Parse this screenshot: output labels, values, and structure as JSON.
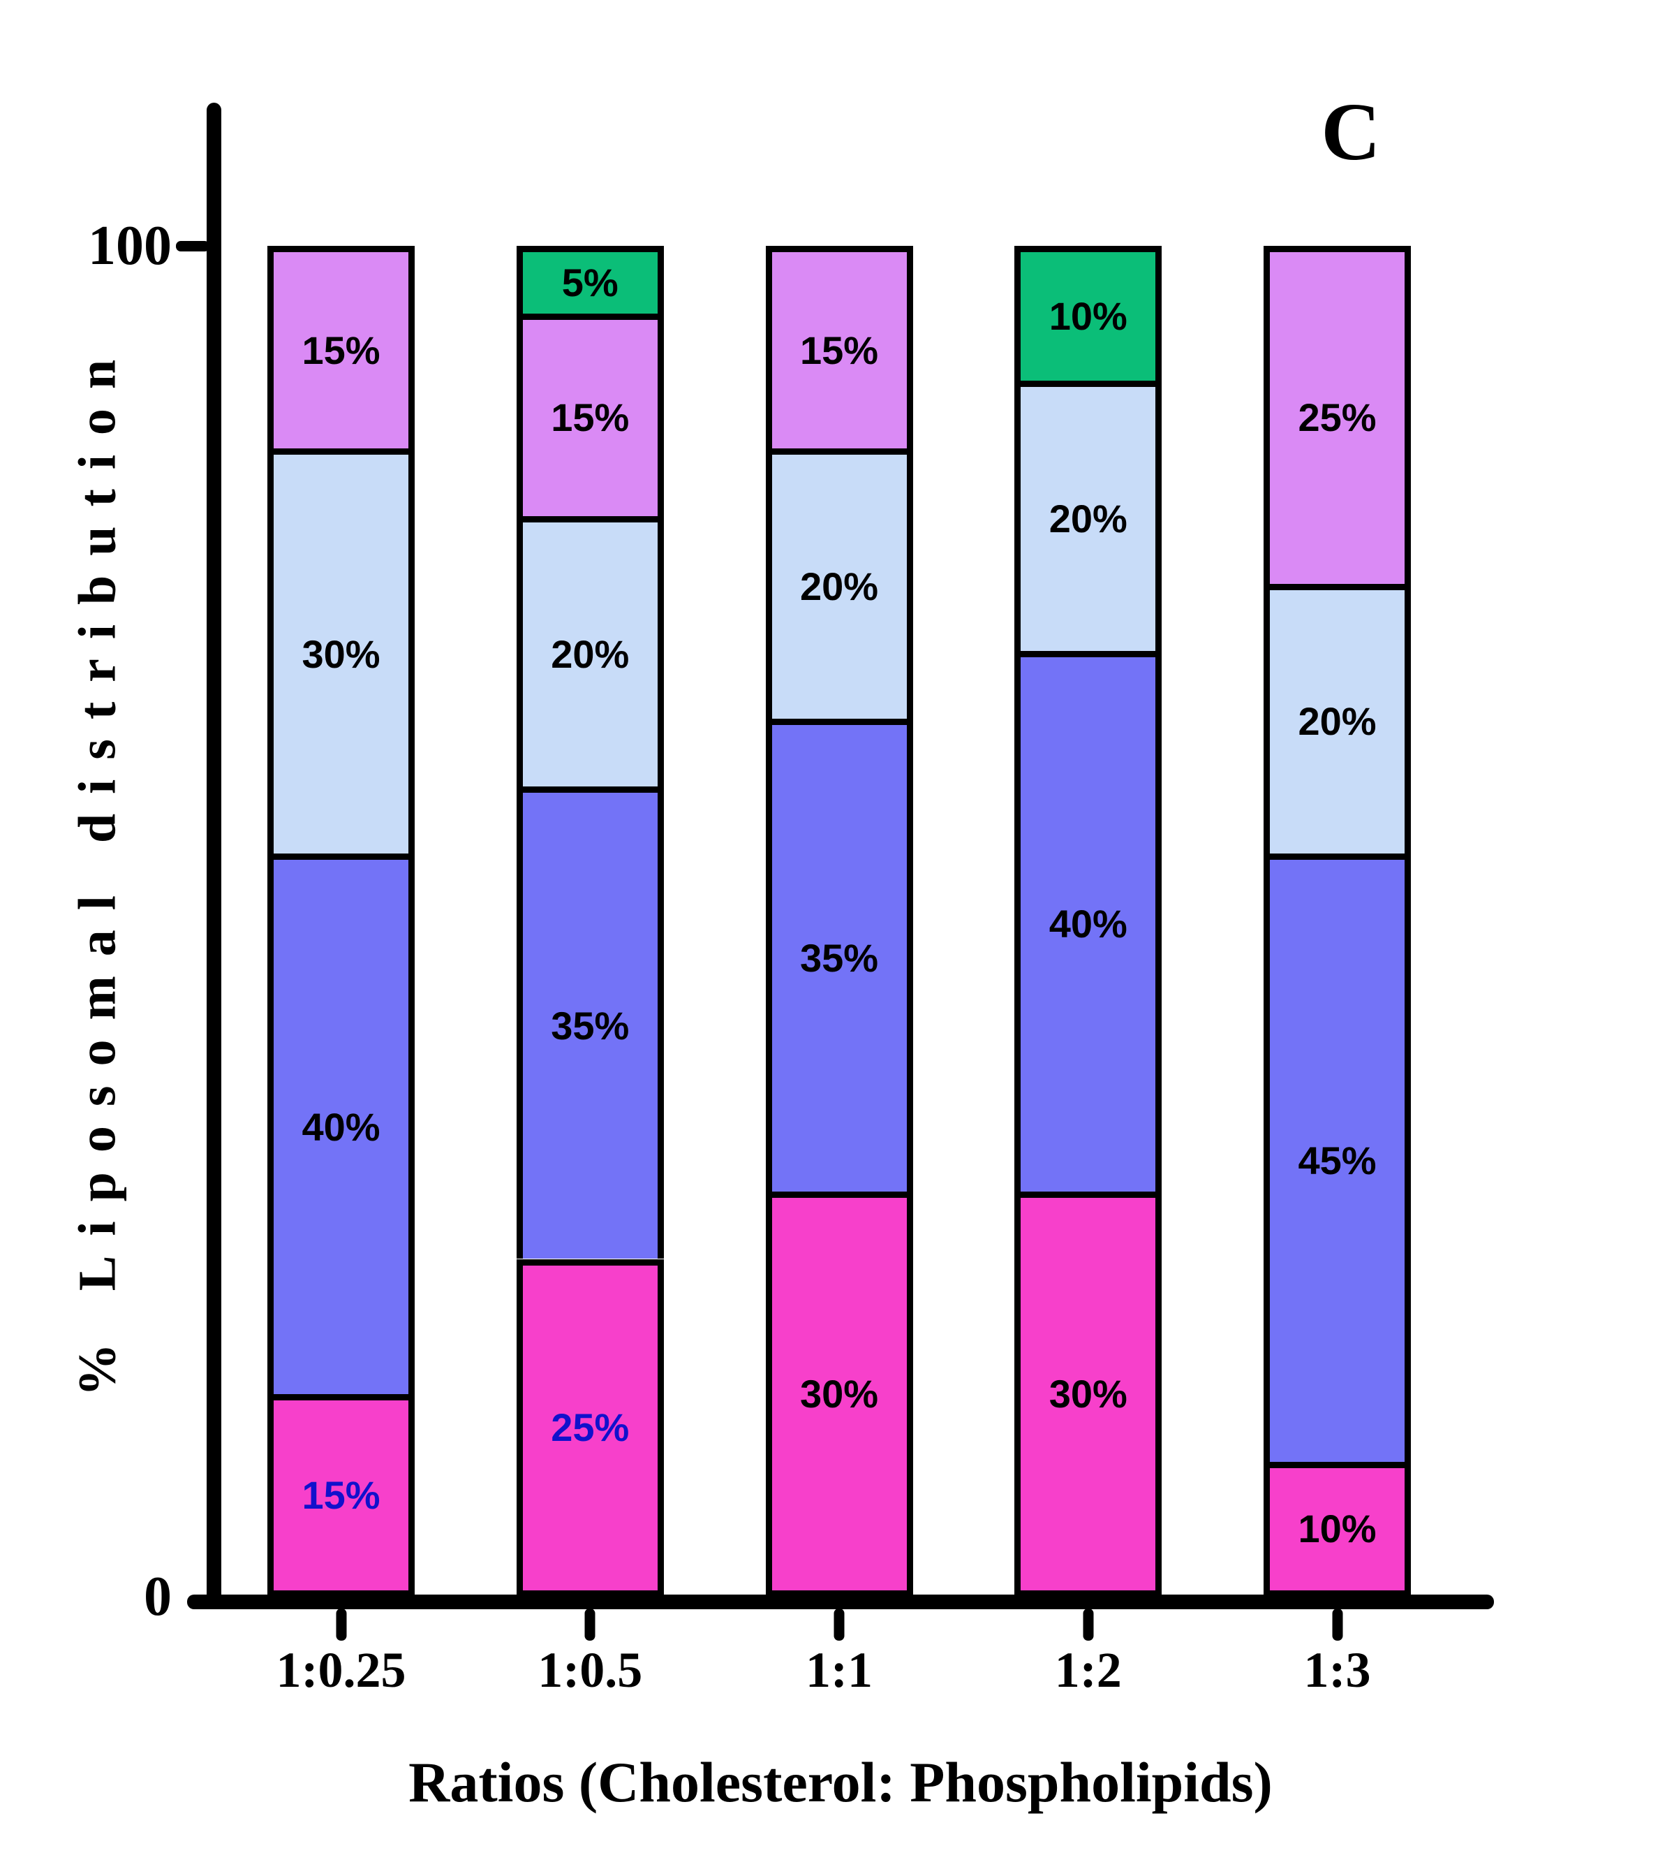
{
  "panel_label": "C",
  "chart_data": {
    "type": "bar",
    "stacked": true,
    "title": "C",
    "xlabel": "Ratios (Cholesterol: Phospholipids)",
    "ylabel": "% Liposomal distribution",
    "ylim": [
      0,
      100
    ],
    "grid": false,
    "legend": "none",
    "y_ticks": [
      {
        "value": 100,
        "label": "100"
      },
      {
        "value": 0,
        "label": "0"
      }
    ],
    "categories": [
      "1:0.25",
      "1:0.5",
      "1:1",
      "1:2",
      "1:3"
    ],
    "palette": {
      "magenta": "#F740CB",
      "slate_blue": "#7373F7",
      "light_blue": "#C8DCF8",
      "violet": "#DA8AF5",
      "green": "#0BBE78"
    },
    "label_colors": {
      "black": "#000000",
      "blue": "#1111CC"
    },
    "bars": [
      {
        "category": "1:0.25",
        "segments": [
          {
            "value": 15,
            "label": "15%",
            "color": "magenta",
            "label_color": "blue"
          },
          {
            "value": 40,
            "label": "40%",
            "color": "slate_blue",
            "label_color": "black"
          },
          {
            "value": 30,
            "label": "30%",
            "color": "light_blue",
            "label_color": "black"
          },
          {
            "value": 15,
            "label": "15%",
            "color": "violet",
            "label_color": "black"
          }
        ]
      },
      {
        "category": "1:0.5",
        "segments": [
          {
            "value": 25,
            "label": "25%",
            "color": "magenta",
            "label_color": "blue"
          },
          {
            "value": 35,
            "label": "35%",
            "color": "slate_blue",
            "label_color": "black"
          },
          {
            "value": 20,
            "label": "20%",
            "color": "light_blue",
            "label_color": "black"
          },
          {
            "value": 15,
            "label": "15%",
            "color": "violet",
            "label_color": "black"
          },
          {
            "value": 5,
            "label": "5%",
            "color": "green",
            "label_color": "black"
          }
        ]
      },
      {
        "category": "1:1",
        "segments": [
          {
            "value": 30,
            "label": "30%",
            "color": "magenta",
            "label_color": "black"
          },
          {
            "value": 35,
            "label": "35%",
            "color": "slate_blue",
            "label_color": "black"
          },
          {
            "value": 20,
            "label": "20%",
            "color": "light_blue",
            "label_color": "black"
          },
          {
            "value": 15,
            "label": "15%",
            "color": "violet",
            "label_color": "black"
          }
        ]
      },
      {
        "category": "1:2",
        "segments": [
          {
            "value": 30,
            "label": "30%",
            "color": "magenta",
            "label_color": "black"
          },
          {
            "value": 40,
            "label": "40%",
            "color": "slate_blue",
            "label_color": "black"
          },
          {
            "value": 20,
            "label": "20%",
            "color": "light_blue",
            "label_color": "black"
          },
          {
            "value": 10,
            "label": "10%",
            "color": "green",
            "label_color": "black"
          }
        ]
      },
      {
        "category": "1:3",
        "segments": [
          {
            "value": 10,
            "label": "10%",
            "color": "magenta",
            "label_color": "black"
          },
          {
            "value": 45,
            "label": "45%",
            "color": "slate_blue",
            "label_color": "black"
          },
          {
            "value": 20,
            "label": "20%",
            "color": "light_blue",
            "label_color": "black"
          },
          {
            "value": 25,
            "label": "25%",
            "color": "violet",
            "label_color": "black"
          }
        ]
      }
    ]
  }
}
